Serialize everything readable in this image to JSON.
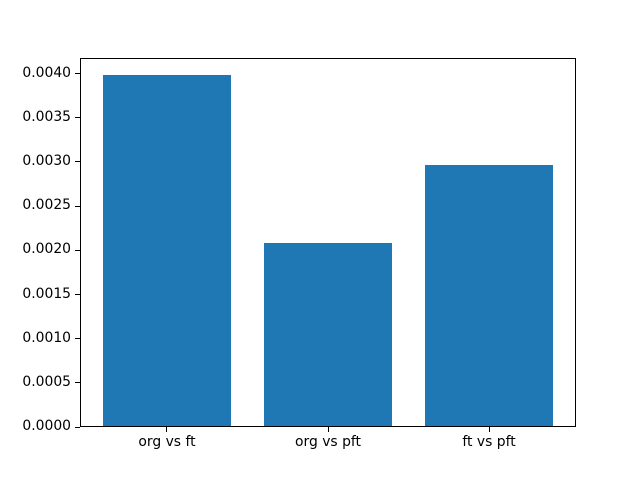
{
  "figure": {
    "background": "#ffffff"
  },
  "chart_data": {
    "type": "bar",
    "title": "",
    "xlabel": "",
    "ylabel": "",
    "categories": [
      "org vs ft",
      "org vs pft",
      "ft vs pft"
    ],
    "values": [
      0.00398,
      0.00208,
      0.00296
    ],
    "bar_color": "#1f77b4",
    "bar_width": 0.8,
    "xlim": [
      -0.54,
      2.54
    ],
    "ylim": [
      0,
      0.00418
    ],
    "yticks": [
      0.0,
      0.0005,
      0.001,
      0.0015,
      0.002,
      0.0025,
      0.003,
      0.0035,
      0.004
    ],
    "ytick_labels": [
      "0.0000",
      "0.0005",
      "0.0010",
      "0.0015",
      "0.0020",
      "0.0025",
      "0.0030",
      "0.0035",
      "0.0040"
    ],
    "grid": false,
    "legend": false
  }
}
